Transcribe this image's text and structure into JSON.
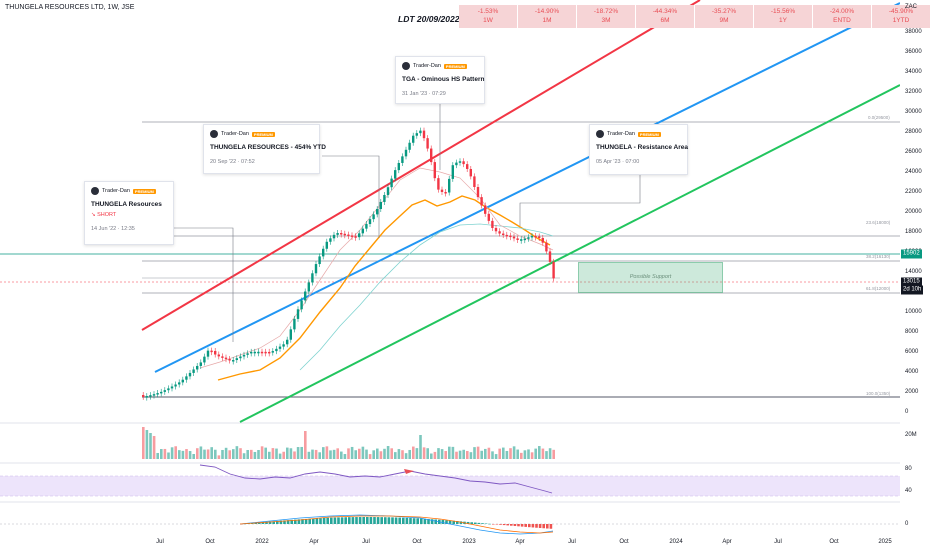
{
  "header": {
    "chart_title": "THUNGELA RESOURCES LTD, 1W, JSE",
    "ldt_label": "LDT 20/09/2022",
    "currency": "ZAC"
  },
  "performance": [
    {
      "value": "-1.53%",
      "period": "1W"
    },
    {
      "value": "-14.90%",
      "period": "1M"
    },
    {
      "value": "-18.72%",
      "period": "3M"
    },
    {
      "value": "-44.34%",
      "period": "6M"
    },
    {
      "value": "-35.27%",
      "period": "9M"
    },
    {
      "value": "-15.56%",
      "period": "1Y"
    },
    {
      "value": "-24.00%",
      "period": "ENTD"
    },
    {
      "value": "-45.90%",
      "period": "1YTD"
    }
  ],
  "ideas": [
    {
      "author": "Trader-Dan",
      "badge": "PREMIUM",
      "title": "THUNGELA Resources",
      "side": "↘ SHORT",
      "date": "14 Jun '22 · 12:35"
    },
    {
      "author": "Trader-Dan",
      "badge": "PREMIUM",
      "title": "THUNGELA RESOURCES - 454% YTD",
      "date": "20 Sep '22 · 07:52"
    },
    {
      "author": "Trader-Dan",
      "badge": "PREMIUM",
      "title": "TGA - Ominous HS Pattern",
      "date": "31 Jan '23 · 07:29"
    },
    {
      "author": "Trader-Dan",
      "badge": "PREMIUM",
      "title": "THUNGELA - Resistance Area",
      "date": "05 Apr '23 · 07:00"
    }
  ],
  "support_zone_label": "Possible Support",
  "fib_levels": [
    "0.0(29500)",
    "23.6(18000)",
    "38.2(16130)",
    "61.8(12000)",
    "100.0(1350)"
  ],
  "price_axis": [
    "38000",
    "36000",
    "34000",
    "32000",
    "30000",
    "28000",
    "26000",
    "24000",
    "22000",
    "20000",
    "18000",
    "16000",
    "14000",
    "12000",
    "10000",
    "8000",
    "6000",
    "4000",
    "2000",
    "0"
  ],
  "badges": {
    "resistance": "15902",
    "last_price": "13015",
    "countdown": "2d 10h"
  },
  "volume_axis": "20M",
  "rsi_axis": [
    "80",
    "40"
  ],
  "macd_axis": "0",
  "time_axis": [
    "Jul",
    "Oct",
    "2022",
    "Apr",
    "Jul",
    "Oct",
    "2023",
    "Apr",
    "Jul",
    "Oct",
    "2024",
    "Apr",
    "Jul",
    "Oct",
    "2025"
  ],
  "colors": {
    "up": "#089981",
    "down": "#f23645",
    "upper_channel": "#f23645",
    "mid_channel": "#2196f3",
    "lower_channel": "#22c55e",
    "ema": "#ff9800",
    "rsi": "#7e57c2"
  }
}
